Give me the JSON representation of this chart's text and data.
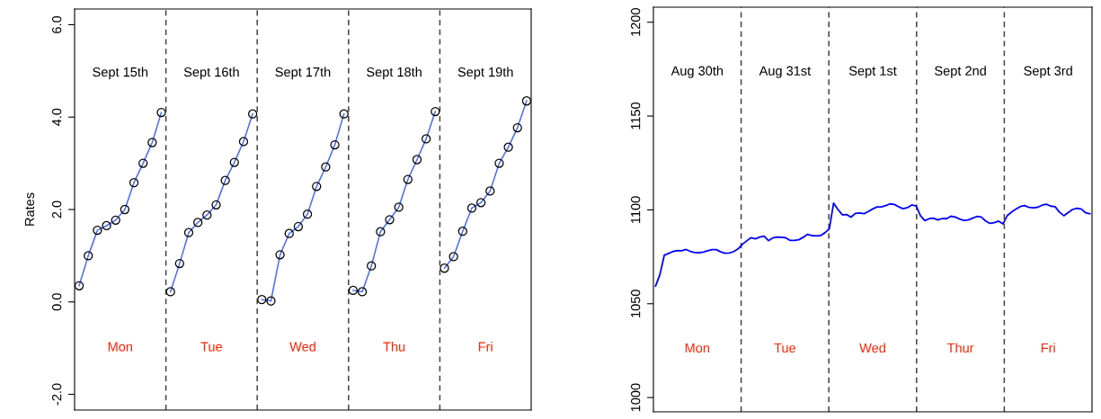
{
  "chart_data": [
    {
      "type": "line",
      "ylabel": "Rates",
      "marker": "circle",
      "tick_labels": "y",
      "ylim": [
        -2.34,
        6.34
      ],
      "yticks": [
        {
          "value": -2,
          "label": "-2.0"
        },
        {
          "value": 0,
          "label": "0.0"
        },
        {
          "value": 2,
          "label": "2.0"
        },
        {
          "value": 4,
          "label": "4.0"
        },
        {
          "value": 6,
          "label": "6.0"
        }
      ],
      "categories": [
        null,
        null,
        null,
        null,
        null,
        null,
        null,
        null,
        null,
        null,
        null,
        null,
        null,
        null,
        null,
        null,
        null,
        null,
        null,
        null,
        null,
        null,
        null,
        null,
        null,
        null,
        null,
        null,
        null,
        null,
        null,
        null,
        null,
        null,
        null,
        null,
        null,
        null,
        null,
        null,
        null,
        null,
        null,
        null,
        null,
        null,
        null,
        null,
        null,
        null
      ],
      "series": [
        {
          "color": "#4a6cf7",
          "values": [
            0.35,
            1.0,
            1.55,
            1.65,
            1.77,
            2.0,
            2.58,
            3.0,
            3.45,
            4.1,
            null,
            null,
            null,
            null,
            null,
            null,
            null,
            null,
            null,
            null,
            null,
            null,
            null,
            null,
            null,
            null,
            null,
            null,
            null,
            null,
            null,
            null,
            null,
            null,
            null,
            null,
            null,
            null,
            null,
            null,
            null,
            null,
            null,
            null,
            null,
            null,
            null,
            null,
            null,
            null
          ]
        },
        {
          "color": "#4a6cf7",
          "values": [
            null,
            null,
            null,
            null,
            null,
            null,
            null,
            null,
            null,
            null,
            0.22,
            0.83,
            1.5,
            1.72,
            1.88,
            2.1,
            2.63,
            3.02,
            3.47,
            4.07,
            null,
            null,
            null,
            null,
            null,
            null,
            null,
            null,
            null,
            null,
            null,
            null,
            null,
            null,
            null,
            null,
            null,
            null,
            null,
            null,
            null,
            null,
            null,
            null,
            null,
            null,
            null,
            null,
            null,
            null
          ]
        },
        {
          "color": "#4a6cf7",
          "values": [
            null,
            null,
            null,
            null,
            null,
            null,
            null,
            null,
            null,
            null,
            null,
            null,
            null,
            null,
            null,
            null,
            null,
            null,
            null,
            null,
            0.05,
            0.02,
            1.02,
            1.48,
            1.63,
            1.9,
            2.5,
            2.92,
            3.4,
            4.07,
            null,
            null,
            null,
            null,
            null,
            null,
            null,
            null,
            null,
            null,
            null,
            null,
            null,
            null,
            null,
            null,
            null,
            null,
            null,
            null
          ]
        },
        {
          "color": "#4a6cf7",
          "values": [
            null,
            null,
            null,
            null,
            null,
            null,
            null,
            null,
            null,
            null,
            null,
            null,
            null,
            null,
            null,
            null,
            null,
            null,
            null,
            null,
            null,
            null,
            null,
            null,
            null,
            null,
            null,
            null,
            null,
            null,
            0.25,
            0.22,
            0.78,
            1.52,
            1.78,
            2.05,
            2.65,
            3.08,
            3.53,
            4.12,
            null,
            null,
            null,
            null,
            null,
            null,
            null,
            null,
            null,
            null
          ]
        },
        {
          "color": "#4a6cf7",
          "values": [
            null,
            null,
            null,
            null,
            null,
            null,
            null,
            null,
            null,
            null,
            null,
            null,
            null,
            null,
            null,
            null,
            null,
            null,
            null,
            null,
            null,
            null,
            null,
            null,
            null,
            null,
            null,
            null,
            null,
            null,
            null,
            null,
            null,
            null,
            null,
            null,
            null,
            null,
            null,
            null,
            0.73,
            0.98,
            1.53,
            2.03,
            2.15,
            2.4,
            3.0,
            3.35,
            3.77,
            4.35
          ]
        }
      ],
      "grid": "x",
      "annotations": [
        "Sept 15th",
        "Sept 16th",
        "Sept 17th",
        "Sept 18th",
        "Sept 19th",
        "Mon",
        "Tue",
        "Wed",
        "Thu",
        "Fri"
      ]
    },
    {
      "type": "line",
      "tick_labels": "y",
      "ylim": [
        992.4,
        1208
      ],
      "yticks": [
        1000,
        1050,
        1100,
        1150,
        1200
      ],
      "categories": [
        null,
        null,
        null,
        null,
        null,
        null,
        null,
        null,
        null,
        null,
        null,
        null,
        null,
        null,
        null,
        null,
        null,
        null,
        null,
        null,
        null,
        null,
        null,
        null,
        null,
        null,
        null,
        null,
        null,
        null,
        null,
        null,
        null,
        null,
        null,
        null,
        null,
        null,
        null,
        null,
        null,
        null,
        null,
        null,
        null,
        null,
        null,
        null,
        null,
        null,
        null,
        null,
        null,
        null,
        null,
        null,
        null,
        null,
        null,
        null,
        null,
        null,
        null,
        null,
        null,
        null,
        null,
        null,
        null,
        null,
        null,
        null,
        null,
        null,
        null,
        null,
        null,
        null,
        null,
        null,
        null,
        null,
        null,
        null,
        null,
        null,
        null,
        null,
        null,
        null,
        null,
        null,
        null,
        null,
        null,
        null,
        null,
        null,
        null,
        null,
        null
      ],
      "series": [
        {
          "color": "#0000ff",
          "values": [
            1059.4,
            1065.5,
            1075.8,
            1076.8,
            1077.8,
            1078.3,
            1078.2,
            1078.9,
            1077.9,
            1077.3,
            1077.2,
            1077.5,
            1078.2,
            1078.8,
            1078.8,
            1077.6,
            1076.9,
            1077.0,
            1077.8,
            1079.2,
            1081.7,
            1083.5,
            1085.2,
            1084.6,
            1085.5,
            1086.0,
            1083.6,
            1085.1,
            1085.5,
            1085.4,
            1085.1,
            1083.7,
            1083.7,
            1084.1,
            1085.4,
            1087.0,
            1086.3,
            1086.1,
            1086.3,
            1087.8,
            1089.9,
            1103.6,
            1100.2,
            1097.4,
            1097.5,
            1096.1,
            1098.1,
            1098.3,
            1098.0,
            1099.1,
            1100.5,
            1101.6,
            1101.6,
            1102.3,
            1103.2,
            1102.9,
            1101.6,
            1100.6,
            1101.2,
            1102.6,
            1102.0,
            1096.9,
            1094.3,
            1095.3,
            1095.6,
            1094.6,
            1095.4,
            1095.3,
            1096.6,
            1096.2,
            1095.1,
            1094.4,
            1094.6,
            1095.6,
            1096.5,
            1096.2,
            1094.1,
            1092.8,
            1093.2,
            1094.0,
            1092.5,
            1097.0,
            1098.9,
            1100.4,
            1101.8,
            1102.3,
            1101.3,
            1101.1,
            1101.4,
            1102.5,
            1103.0,
            1102.0,
            1101.7,
            1098.8,
            1096.9,
            1098.5,
            1100.2,
            1100.8,
            1100.5,
            1098.5,
            1098.0
          ]
        }
      ],
      "grid": "x",
      "annotations": [
        "Aug 30th",
        "Aug 31st",
        "Sept 1st",
        "Sept 2nd",
        "Sept 3rd",
        "Mon",
        "Tue",
        "Wed",
        "Thur",
        "Fri"
      ]
    }
  ]
}
